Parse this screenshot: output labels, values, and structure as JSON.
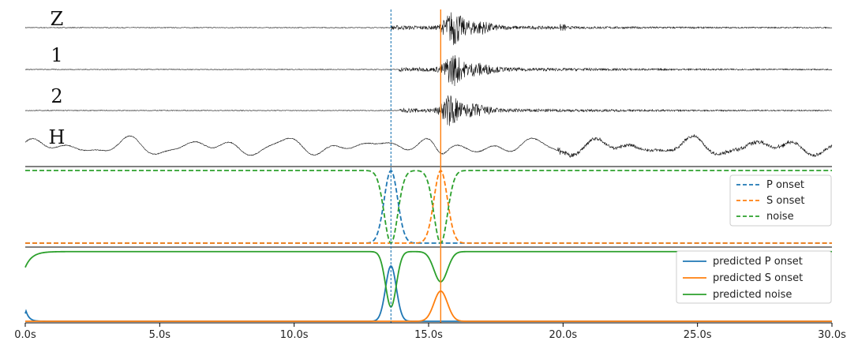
{
  "colors": {
    "p": "#1f77b4",
    "s": "#ff7f0e",
    "noise": "#2ca02c",
    "trace": "#111111",
    "axis": "#000000"
  },
  "chart_data": {
    "type": "line",
    "xlim": [
      0,
      30
    ],
    "x_ticks": [
      0,
      5,
      10,
      15,
      20,
      25,
      30
    ],
    "x_tick_labels": [
      "0.0s",
      "5.0s",
      "10.0s",
      "15.0s",
      "20.0s",
      "25.0s",
      "30.0s"
    ],
    "grid": false,
    "p_arrival_s": 13.6,
    "s_arrival_s": 15.45,
    "waveform_channels": [
      {
        "label": "Z",
        "onset_s": 13.6,
        "s_peak_s": 15.9,
        "s_amplitude": 1.0
      },
      {
        "label": "1",
        "onset_s": 13.9,
        "s_peak_s": 15.9,
        "s_amplitude": 0.9
      },
      {
        "label": "2",
        "onset_s": 13.9,
        "s_peak_s": 15.8,
        "s_amplitude": 0.9
      },
      {
        "label": "H",
        "onset_s": 0.0,
        "s_peak_s": 15.45,
        "s_amplitude": 0.5
      }
    ],
    "labels_panel": {
      "legend_placement": "right",
      "ylim": [
        0,
        1
      ],
      "series": [
        {
          "name": "P onset",
          "style": "dashed",
          "color_key": "p",
          "curve": "gaussian_peak",
          "center_s": 13.6,
          "sigma_s": 0.25,
          "min": 0,
          "max": 1
        },
        {
          "name": "S onset",
          "style": "dashed",
          "color_key": "s",
          "curve": "gaussian_peak",
          "center_s": 15.45,
          "sigma_s": 0.25,
          "min": 0,
          "max": 1
        },
        {
          "name": "noise",
          "style": "dashed",
          "color_key": "noise",
          "curve": "complement_of_peaks",
          "min": 0,
          "max": 1
        }
      ]
    },
    "predictions_panel": {
      "legend_placement": "top-right",
      "ylim": [
        0,
        1
      ],
      "series": [
        {
          "name": "predicted P onset",
          "style": "solid",
          "color_key": "p",
          "curve": "gaussian_peak",
          "center_s": 13.6,
          "sigma_s": 0.2,
          "max": 0.77,
          "early_bump_s": 0.05,
          "early_bump_max": 0.18
        },
        {
          "name": "predicted S onset",
          "style": "solid",
          "color_key": "s",
          "curve": "gaussian_peak",
          "center_s": 15.45,
          "sigma_s": 0.25,
          "max": 0.42
        },
        {
          "name": "predicted noise",
          "style": "solid",
          "color_key": "noise",
          "curve": "complement_of_predictions",
          "max": 0.97,
          "start_value": 0.75
        }
      ]
    }
  }
}
